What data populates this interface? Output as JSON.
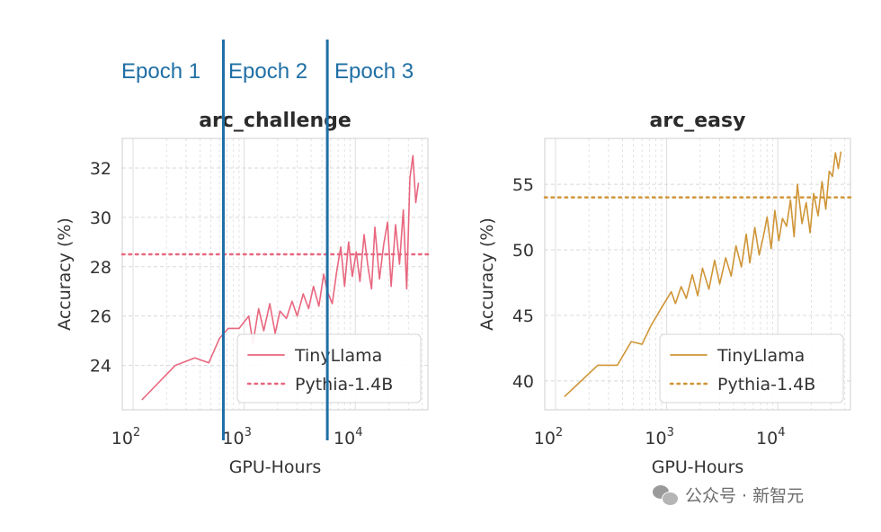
{
  "epoch_color": "#1f6fa5",
  "epochs": [
    {
      "label": "Epoch 1"
    },
    {
      "label": "Epoch 2"
    },
    {
      "label": "Epoch 3"
    }
  ],
  "epoch_boundaries_gpu_hours": [
    650,
    5600
  ],
  "watermark": {
    "text": "公众号 · 新智元"
  },
  "chart_data": [
    {
      "type": "line",
      "title": "arc_challenge",
      "xlabel": "GPU-Hours",
      "ylabel": "Accuracy (%)",
      "xscale": "log",
      "xlim": [
        80,
        45000
      ],
      "ylim": [
        22.2,
        33.2
      ],
      "x_ticks": [
        {
          "value": 100,
          "mant": "10",
          "exp": "2"
        },
        {
          "value": 1000,
          "mant": "10",
          "exp": "3"
        },
        {
          "value": 10000,
          "mant": "10",
          "exp": "4"
        }
      ],
      "y_ticks": [
        24,
        26,
        28,
        30,
        32
      ],
      "grid": true,
      "legend_position": "lower-right",
      "series": [
        {
          "name": "TinyLlama",
          "style": "solid",
          "color": "#e8677f",
          "x": [
            120,
            240,
            360,
            480,
            600,
            720,
            900,
            1100,
            1200,
            1350,
            1500,
            1700,
            1900,
            2100,
            2400,
            2700,
            3000,
            3400,
            3800,
            4200,
            4700,
            5200,
            5600,
            6200,
            6800,
            7400,
            8000,
            8700,
            9400,
            10200,
            11000,
            12000,
            13000,
            14000,
            15000,
            16500,
            18000,
            19500,
            21000,
            23000,
            25000,
            27000,
            29000,
            31000,
            33000,
            35000,
            37000
          ],
          "values": [
            22.6,
            24.0,
            24.3,
            24.1,
            25.1,
            25.5,
            25.5,
            26.0,
            24.9,
            26.3,
            25.4,
            26.5,
            25.3,
            26.2,
            25.9,
            26.6,
            26.0,
            26.9,
            26.3,
            27.2,
            26.4,
            27.7,
            27.0,
            26.5,
            27.8,
            28.8,
            27.2,
            29.0,
            27.6,
            28.6,
            27.4,
            29.3,
            28.0,
            27.1,
            29.6,
            27.5,
            28.9,
            29.8,
            27.2,
            29.7,
            28.1,
            30.3,
            27.1,
            31.6,
            32.5,
            30.6,
            31.4
          ]
        },
        {
          "name": "Pythia-1.4B",
          "style": "dotted",
          "color": "#e8677f",
          "constant": 28.5
        }
      ]
    },
    {
      "type": "line",
      "title": "arc_easy",
      "xlabel": "GPU-Hours",
      "ylabel": "Accuracy (%)",
      "xscale": "log",
      "xlim": [
        80,
        45000
      ],
      "ylim": [
        37.8,
        58.5
      ],
      "x_ticks": [
        {
          "value": 100,
          "mant": "10",
          "exp": "2"
        },
        {
          "value": 1000,
          "mant": "10",
          "exp": "3"
        },
        {
          "value": 10000,
          "mant": "10",
          "exp": "4"
        }
      ],
      "y_ticks": [
        40,
        45,
        50,
        55
      ],
      "grid": true,
      "legend_position": "lower-right",
      "series": [
        {
          "name": "TinyLlama",
          "style": "solid",
          "color": "#cf9537",
          "x": [
            120,
            240,
            360,
            480,
            600,
            720,
            900,
            1100,
            1200,
            1350,
            1500,
            1700,
            1900,
            2100,
            2400,
            2700,
            3000,
            3400,
            3800,
            4200,
            4700,
            5200,
            5600,
            6200,
            6800,
            7400,
            8000,
            8700,
            9400,
            10200,
            11000,
            12000,
            13000,
            14000,
            15000,
            16500,
            18000,
            19500,
            21000,
            23000,
            25000,
            27000,
            29000,
            31000,
            33000,
            35000,
            37000
          ],
          "values": [
            38.8,
            41.2,
            41.2,
            43.0,
            42.8,
            44.2,
            45.6,
            46.8,
            45.9,
            47.2,
            46.3,
            48.1,
            46.5,
            48.6,
            47.0,
            49.2,
            47.4,
            49.4,
            48.0,
            50.3,
            48.7,
            51.2,
            49.0,
            51.7,
            49.6,
            51.0,
            52.5,
            50.1,
            53.0,
            50.7,
            52.4,
            51.8,
            53.8,
            51.0,
            55.0,
            52.0,
            53.6,
            51.3,
            54.3,
            52.6,
            55.2,
            53.1,
            56.0,
            55.6,
            57.4,
            56.2,
            57.5
          ]
        },
        {
          "name": "Pythia-1.4B",
          "style": "dotted",
          "color": "#cf9537",
          "constant": 54.0
        }
      ]
    }
  ]
}
